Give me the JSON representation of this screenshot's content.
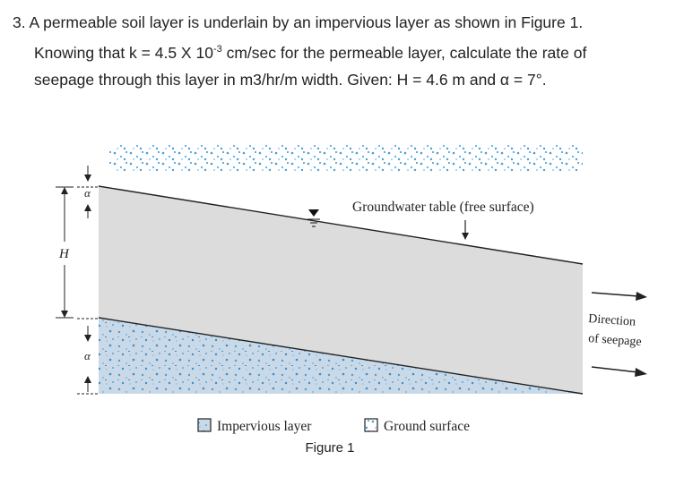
{
  "question": {
    "number": "3.",
    "line1": "A permeable soil layer is underlain by an impervious layer as shown in Figure 1.",
    "line2_a": "Knowing that k = 4.5 X 10",
    "line2_exp": "-3",
    "line2_b": " cm/sec for the permeable layer, calculate the rate of",
    "line3": "seepage through this layer in m3/hr/m width. Given: H = 4.6 m and α = 7°."
  },
  "figure": {
    "label_H": "H",
    "label_alpha": "α",
    "gwt_label": "Groundwater table (free surface)",
    "direction_line1": "Direction",
    "direction_line2": "of seepage",
    "legend_impervious": "Impervious layer",
    "legend_ground": "Ground surface",
    "caption": "Figure 1"
  },
  "colors": {
    "permeable_fill": "#dcdcdc",
    "speckle_blue": "#4a9fd8",
    "impervious_fill": "#c7d7e6",
    "line": "#222222"
  }
}
